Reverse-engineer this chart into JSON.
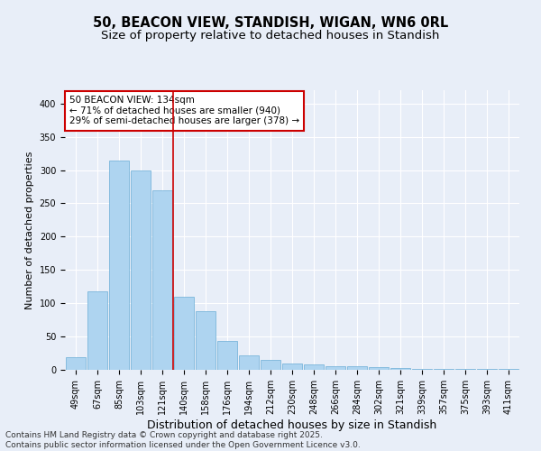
{
  "title1": "50, BEACON VIEW, STANDISH, WIGAN, WN6 0RL",
  "title2": "Size of property relative to detached houses in Standish",
  "xlabel": "Distribution of detached houses by size in Standish",
  "ylabel": "Number of detached properties",
  "categories": [
    "49sqm",
    "67sqm",
    "85sqm",
    "103sqm",
    "121sqm",
    "140sqm",
    "158sqm",
    "176sqm",
    "194sqm",
    "212sqm",
    "230sqm",
    "248sqm",
    "266sqm",
    "284sqm",
    "302sqm",
    "321sqm",
    "339sqm",
    "357sqm",
    "375sqm",
    "393sqm",
    "411sqm"
  ],
  "values": [
    19,
    118,
    315,
    300,
    270,
    110,
    88,
    43,
    22,
    15,
    9,
    8,
    6,
    5,
    4,
    3,
    2,
    1,
    1,
    1,
    1
  ],
  "bar_color": "#aed4f0",
  "bar_edge_color": "#6aadd5",
  "marker_label": "50 BEACON VIEW: 134sqm",
  "annotation_line1": "← 71% of detached houses are smaller (940)",
  "annotation_line2": "29% of semi-detached houses are larger (378) →",
  "annotation_box_color": "#ffffff",
  "annotation_box_edge": "#cc0000",
  "marker_line_color": "#cc0000",
  "ylim": [
    0,
    420
  ],
  "yticks": [
    0,
    50,
    100,
    150,
    200,
    250,
    300,
    350,
    400
  ],
  "footer1": "Contains HM Land Registry data © Crown copyright and database right 2025.",
  "footer2": "Contains public sector information licensed under the Open Government Licence v3.0.",
  "background_color": "#e8eef8",
  "plot_bg_color": "#e8eef8",
  "grid_color": "#ffffff",
  "title_fontsize": 10.5,
  "subtitle_fontsize": 9.5,
  "footer_fontsize": 6.5,
  "annotation_fontsize": 7.5,
  "tick_fontsize": 7
}
